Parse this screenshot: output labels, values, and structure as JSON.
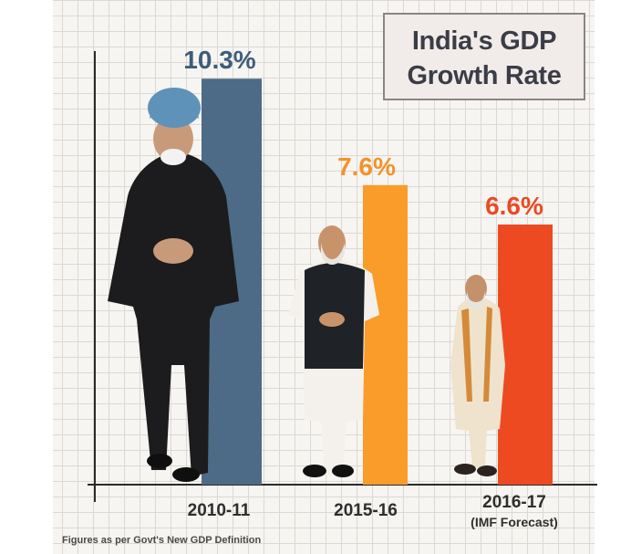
{
  "title": {
    "line1": "India's GDP",
    "line2": "Growth Rate"
  },
  "footnote": "Figures as per Govt's New GDP Definition",
  "chart_data": {
    "type": "bar",
    "title": "India's GDP Growth Rate",
    "categories": [
      "2010-11",
      "2015-16",
      "2016-17"
    ],
    "category_sublabels": [
      "",
      "",
      "(IMF Forecast)"
    ],
    "values": [
      10.3,
      7.6,
      6.6
    ],
    "value_labels": [
      "10.3%",
      "7.6%",
      "6.6%"
    ],
    "ylim": [
      0,
      11
    ],
    "ylabel": "",
    "xlabel": "",
    "grid": true,
    "colors": [
      "#4d6b86",
      "#f99c2a",
      "#ee4a22"
    ],
    "label_colors": [
      "#3e5d7a",
      "#f2922a",
      "#e84b24"
    ]
  }
}
